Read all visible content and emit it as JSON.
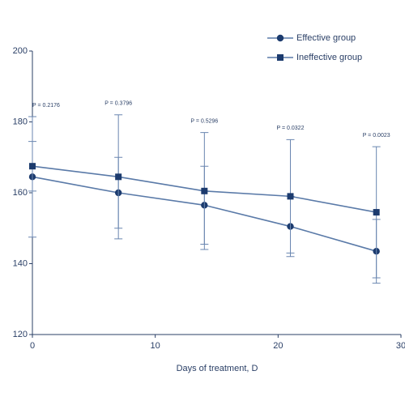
{
  "chart_data": {
    "type": "line",
    "x_label": "Days of treatment, D",
    "x": [
      0,
      7,
      14,
      21,
      28
    ],
    "series": [
      {
        "name": "Effective group",
        "color": "#1c3b6e",
        "marker": "circle",
        "values": [
          164.5,
          160,
          156.5,
          150.5,
          143.5
        ],
        "errors": [
          17,
          10,
          11,
          8.5,
          9
        ]
      },
      {
        "name": "Ineffective group",
        "color": "#1c3b6e",
        "marker": "square",
        "values": [
          167.5,
          164.5,
          160.5,
          159,
          154.5
        ],
        "errors": [
          7,
          17.5,
          16.5,
          16,
          18.5
        ]
      }
    ],
    "annotations": [
      {
        "text": "P = 0.2176",
        "x": 0
      },
      {
        "text": "P = 0.3796",
        "x": 7
      },
      {
        "text": "P = 0.5296",
        "x": 14
      },
      {
        "text": "P = 0.0322",
        "x": 21
      },
      {
        "text": "P = 0.0023",
        "x": 28
      }
    ],
    "xlim": [
      0,
      30
    ],
    "xticks": [
      0,
      10,
      20,
      30
    ],
    "ylim": [
      120,
      200
    ],
    "yticks": [
      120,
      140,
      160,
      180,
      200
    ]
  }
}
